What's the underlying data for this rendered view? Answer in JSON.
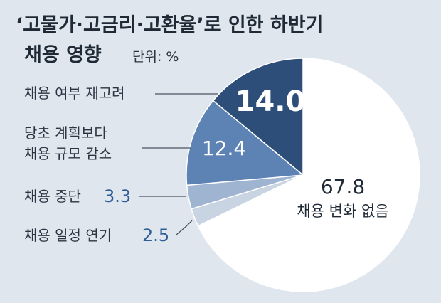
{
  "chart_data": {
    "type": "pie",
    "title_line1": "‘고물가·고금리·고환율’로 인한 하반기",
    "title_line2": "채용 영향",
    "unit_label": "단위: %",
    "slices": [
      {
        "label": "채용 변화 없음",
        "value": 67.8,
        "color": "#ffffff"
      },
      {
        "label": "채용 일정 연기",
        "value": 2.5,
        "color": "#c9d4e2"
      },
      {
        "label": "채용 중단",
        "value": 3.3,
        "color": "#9fb4d0"
      },
      {
        "label_lines": [
          "당초 계획보다",
          "채용 규모 감소"
        ],
        "value": 12.4,
        "color": "#5d82b4"
      },
      {
        "label": "채용 여부 재고려",
        "value": 14.0,
        "color": "#2c4e78"
      }
    ]
  }
}
